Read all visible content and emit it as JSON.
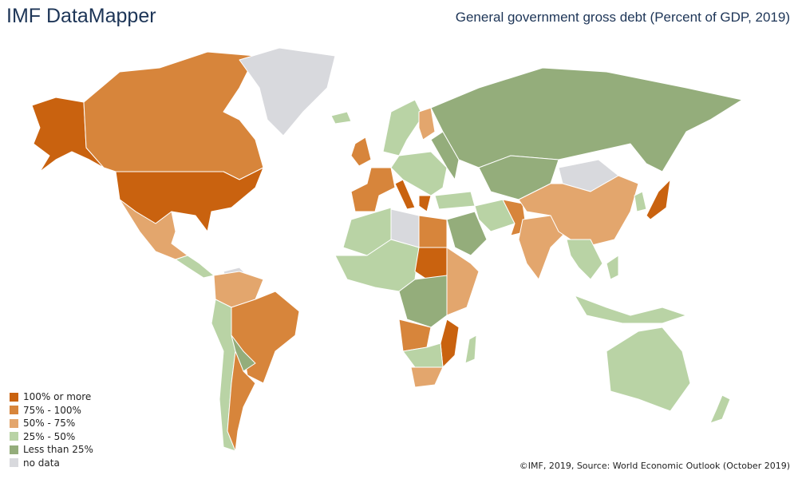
{
  "header": {
    "app_title": "IMF DataMapper",
    "map_title": "General government gross debt (Percent of GDP, 2019)"
  },
  "legend": [
    {
      "label": "100% or more",
      "color": "#c9620f"
    },
    {
      "label": "75% - 100%",
      "color": "#d7853b"
    },
    {
      "label": "50% - 75%",
      "color": "#e3a66d"
    },
    {
      "label": "25% - 50%",
      "color": "#b9d3a5"
    },
    {
      "label": "Less than 25%",
      "color": "#94ad7b"
    },
    {
      "label": "no data",
      "color": "#d8d9dd"
    }
  ],
  "regions": {
    "alaska": 0,
    "canada": 1,
    "greenland": 5,
    "usa": 0,
    "mexico": 2,
    "central-america": 3,
    "caribbean": 5,
    "venezuela-colombia": 2,
    "brazil": 1,
    "peru-chile": 3,
    "bolivia-paraguay": 4,
    "argentina": 1,
    "iceland": 3,
    "uk": 1,
    "scandinavia": 3,
    "finland": 2,
    "france-spain": 1,
    "italy-greece": 0,
    "central-europe": 3,
    "eastern-europe": 4,
    "russia": 4,
    "kazakhstan": 4,
    "turkey": 3,
    "middle-east": 4,
    "iran": 3,
    "pakistan": 1,
    "india": 2,
    "china": 2,
    "mongolia": 5,
    "japan": 0,
    "korea": 3,
    "southeast-asia": 3,
    "indonesia": 3,
    "australia": 3,
    "new-zealand": 3,
    "north-africa": 3,
    "libya": 5,
    "egypt": 1,
    "west-africa": 3,
    "sudan": 0,
    "central-africa": 4,
    "east-africa": 2,
    "southern-africa": 3,
    "angola": 1,
    "mozambique": 0,
    "south-africa": 2,
    "madagascar": 3
  },
  "footer": {
    "source": "©IMF, 2019, Source: World Economic Outlook (October 2019)"
  }
}
